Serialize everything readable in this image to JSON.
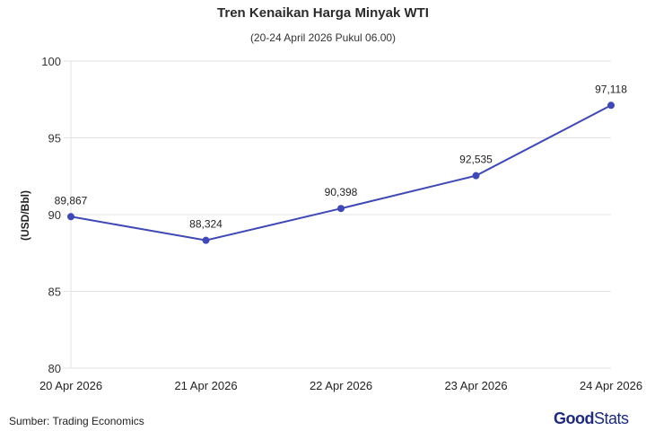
{
  "header": {
    "title": "Tren Kenaikan Harga Minyak WTI",
    "subtitle": "(20-24 April 2026 Pukul 06.00)"
  },
  "footer": {
    "source": "Sumber: Trading Economics",
    "logo_bold": "Good",
    "logo_light": "Stats"
  },
  "colors": {
    "line": "#3f48b5",
    "grid": "#e3e3e3",
    "logo": "#1e2a7a"
  },
  "chart_data": {
    "type": "line",
    "title": "Tren Kenaikan Harga Minyak WTI",
    "subtitle": "(20-24 April 2026 Pukul 06.00)",
    "xlabel": "",
    "ylabel": "(USD/Bbl)",
    "ylim": [
      80,
      100
    ],
    "yticks": [
      80,
      85,
      90,
      95,
      100
    ],
    "grid": true,
    "legend": null,
    "categories": [
      "20 Apr 2026",
      "21 Apr 2026",
      "22 Apr 2026",
      "23 Apr 2026",
      "24 Apr 2026"
    ],
    "values": [
      89.867,
      88.324,
      90.398,
      92.535,
      97.118
    ],
    "labels": [
      "89,867",
      "88,324",
      "90,398",
      "92,535",
      "97,118"
    ]
  }
}
